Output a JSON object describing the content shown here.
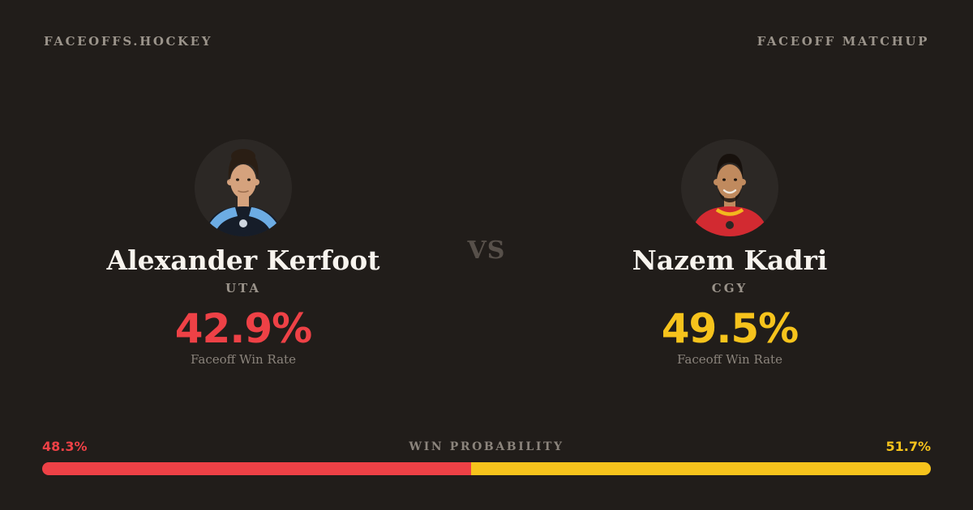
{
  "header": {
    "brand": "FACEOFFS.HOCKEY",
    "page_label": "FACEOFF MATCHUP"
  },
  "matchup": {
    "vs_label": "VS",
    "players": [
      {
        "name": "Alexander Kerfoot",
        "team": "UTA",
        "faceoff_win_rate": "42.9%",
        "stat_label": "Faceoff Win Rate",
        "accent_color": "#ee4146",
        "jersey_color": "#161d29",
        "jersey_trim_color": "#6cace4",
        "skin_color": "#d5a27d",
        "hair_color": "#2a1e14"
      },
      {
        "name": "Nazem Kadri",
        "team": "CGY",
        "faceoff_win_rate": "49.5%",
        "stat_label": "Faceoff Win Rate",
        "accent_color": "#f6c31c",
        "jersey_color": "#d22a31",
        "jersey_trim_color": "#f3b71e",
        "skin_color": "#c08a5e",
        "hair_color": "#17110d"
      }
    ]
  },
  "win_probability": {
    "title": "WIN PROBABILITY",
    "left_value": "48.3%",
    "right_value": "51.7%",
    "left_pct": 48.3,
    "right_pct": 51.7,
    "left_color": "#ee4146",
    "right_color": "#f6c31c"
  },
  "colors": {
    "background": "#211d1a",
    "avatar_circle": "#2c2825",
    "text_primary": "#f8f4ee",
    "text_muted": "#9a938a",
    "text_faint": "#8b847c",
    "vs_color": "#57504a"
  }
}
